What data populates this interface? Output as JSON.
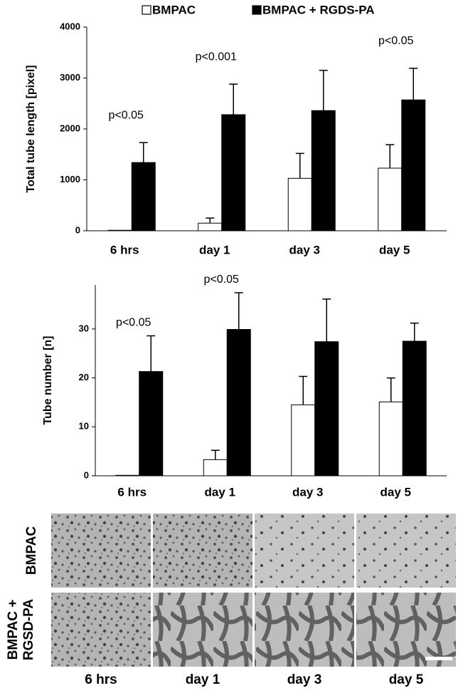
{
  "chart_data": [
    {
      "type": "bar",
      "y_label": "Total tube length [pixel]",
      "categories": [
        "6 hrs",
        "day 1",
        "day 3",
        "day 5"
      ],
      "series": [
        {
          "name": "BMPAC",
          "color": "#ffffff",
          "values": [
            10,
            150,
            1030,
            1230
          ],
          "errors": [
            0,
            100,
            490,
            460
          ]
        },
        {
          "name": "BMPAC + RGDS-PA",
          "color": "#000000",
          "values": [
            1340,
            2280,
            2360,
            2570
          ],
          "errors": [
            390,
            600,
            790,
            620
          ]
        }
      ],
      "ylim": [
        0,
        4000
      ],
      "yticks": [
        0,
        1000,
        2000,
        3000,
        4000
      ],
      "legend": "top",
      "annotations": [
        {
          "text": "p<0.05",
          "category": "6 hrs"
        },
        {
          "text": "p<0.001",
          "category": "day 1"
        },
        {
          "text": "p<0.05",
          "category": "day 5"
        }
      ]
    },
    {
      "type": "bar",
      "y_label": "Tube number [n]",
      "categories": [
        "6 hrs",
        "day 1",
        "day 3",
        "day 5"
      ],
      "series": [
        {
          "color": "#ffffff",
          "values": [
            0.1,
            3.3,
            14.5,
            15.1
          ],
          "errors": [
            0,
            1.9,
            5.8,
            4.9
          ]
        },
        {
          "color": "#000000",
          "values": [
            21.3,
            29.9,
            27.4,
            27.5
          ],
          "errors": [
            7.3,
            7.5,
            8.7,
            3.7
          ]
        }
      ],
      "ylim": [
        0,
        39
      ],
      "yticks": [
        0,
        10,
        20,
        30
      ],
      "annotations": [
        {
          "text": "p<0.05",
          "category": "6 hrs"
        },
        {
          "text": "p<0.05",
          "category": "day 1"
        }
      ]
    }
  ],
  "image_panel": {
    "row_labels": [
      "BMPAC",
      "BMPAC + RGSD-PA"
    ],
    "column_labels": [
      "6 hrs",
      "day 1",
      "day 3",
      "day 5"
    ]
  }
}
